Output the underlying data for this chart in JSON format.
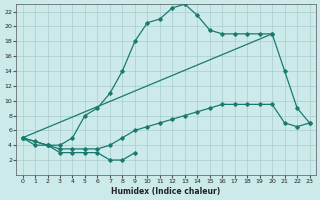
{
  "xlabel": "Humidex (Indice chaleur)",
  "bg_color": "#cceaea",
  "grid_color": "#aacccc",
  "line_color": "#1a7a6e",
  "xlim": [
    -0.5,
    23.5
  ],
  "ylim": [
    0,
    23
  ],
  "xticks": [
    0,
    1,
    2,
    3,
    4,
    5,
    6,
    7,
    8,
    9,
    10,
    11,
    12,
    13,
    14,
    15,
    16,
    17,
    18,
    19,
    20,
    21,
    22,
    23
  ],
  "yticks": [
    2,
    4,
    6,
    8,
    10,
    12,
    14,
    16,
    18,
    20,
    22
  ],
  "line_main_x": [
    0,
    1,
    2,
    3,
    4,
    5,
    6,
    7,
    8,
    9,
    10,
    11,
    12,
    13,
    14,
    15,
    16,
    17,
    18,
    19,
    20
  ],
  "line_main_y": [
    5,
    4.5,
    4,
    4,
    5,
    8,
    9,
    11,
    14,
    18,
    20.5,
    21,
    22.5,
    23,
    21.5,
    19.5,
    19,
    19,
    19,
    19,
    19
  ],
  "line_diag_x": [
    0,
    20,
    21,
    22,
    23
  ],
  "line_diag_y": [
    5,
    19,
    14,
    9,
    7
  ],
  "line_flat_x": [
    0,
    1,
    2,
    3,
    4,
    5,
    6,
    7,
    8,
    9,
    10,
    11,
    12,
    13,
    14,
    15,
    16,
    17,
    18,
    19,
    20,
    21,
    22,
    23
  ],
  "line_flat_y": [
    5,
    4,
    4,
    3.5,
    3.5,
    3.5,
    3.5,
    4,
    5,
    6,
    6.5,
    7,
    7.5,
    8,
    8.5,
    9,
    9.5,
    9.5,
    9.5,
    9.5,
    9.5,
    7,
    6.5,
    7
  ],
  "line_loop_x": [
    0,
    2,
    3,
    4,
    5,
    6,
    7,
    8,
    9
  ],
  "line_loop_y": [
    5,
    4,
    3,
    3,
    3,
    3,
    2,
    2,
    3
  ]
}
